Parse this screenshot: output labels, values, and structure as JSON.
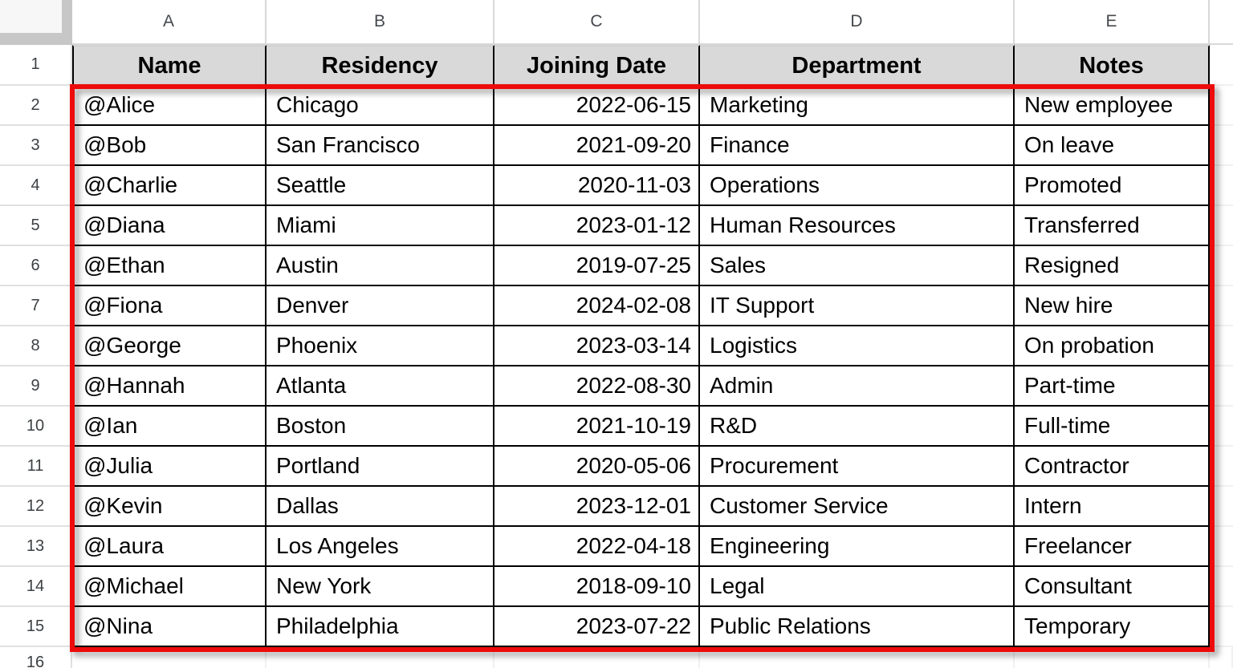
{
  "column_headers": [
    "A",
    "B",
    "C",
    "D",
    "E"
  ],
  "row_numbers": [
    "1",
    "2",
    "3",
    "4",
    "5",
    "6",
    "7",
    "8",
    "9",
    "10",
    "11",
    "12",
    "13",
    "14",
    "15",
    "16"
  ],
  "table": {
    "header": [
      "Name",
      "Residency",
      "Joining Date",
      "Department",
      "Notes"
    ],
    "rows": [
      [
        "@Alice",
        "Chicago",
        "2022-06-15",
        "Marketing",
        "New employee"
      ],
      [
        "@Bob",
        "San Francisco",
        "2021-09-20",
        "Finance",
        "On leave"
      ],
      [
        "@Charlie",
        "Seattle",
        "2020-11-03",
        "Operations",
        "Promoted"
      ],
      [
        "@Diana",
        "Miami",
        "2023-01-12",
        "Human Resources",
        "Transferred"
      ],
      [
        "@Ethan",
        "Austin",
        "2019-07-25",
        "Sales",
        "Resigned"
      ],
      [
        "@Fiona",
        "Denver",
        "2024-02-08",
        "IT Support",
        "New hire"
      ],
      [
        "@George",
        "Phoenix",
        "2023-03-14",
        "Logistics",
        "On probation"
      ],
      [
        "@Hannah",
        "Atlanta",
        "2022-08-30",
        "Admin",
        "Part-time"
      ],
      [
        "@Ian",
        "Boston",
        "2021-10-19",
        "R&D",
        "Full-time"
      ],
      [
        "@Julia",
        "Portland",
        "2020-05-06",
        "Procurement",
        "Contractor"
      ],
      [
        "@Kevin",
        "Dallas",
        "2023-12-01",
        "Customer Service",
        "Intern"
      ],
      [
        "@Laura",
        "Los Angeles",
        "2022-04-18",
        "Engineering",
        "Freelancer"
      ],
      [
        "@Michael",
        "New York",
        "2018-09-10",
        "Legal",
        "Consultant"
      ],
      [
        "@Nina",
        "Philadelphia",
        "2023-07-22",
        "Public Relations",
        "Temporary"
      ]
    ]
  },
  "colors": {
    "header_fill": "#d9d9d9",
    "cell_border": "#000000",
    "selection_border": "#ee0b0b",
    "gridline": "#e0e0e0"
  }
}
